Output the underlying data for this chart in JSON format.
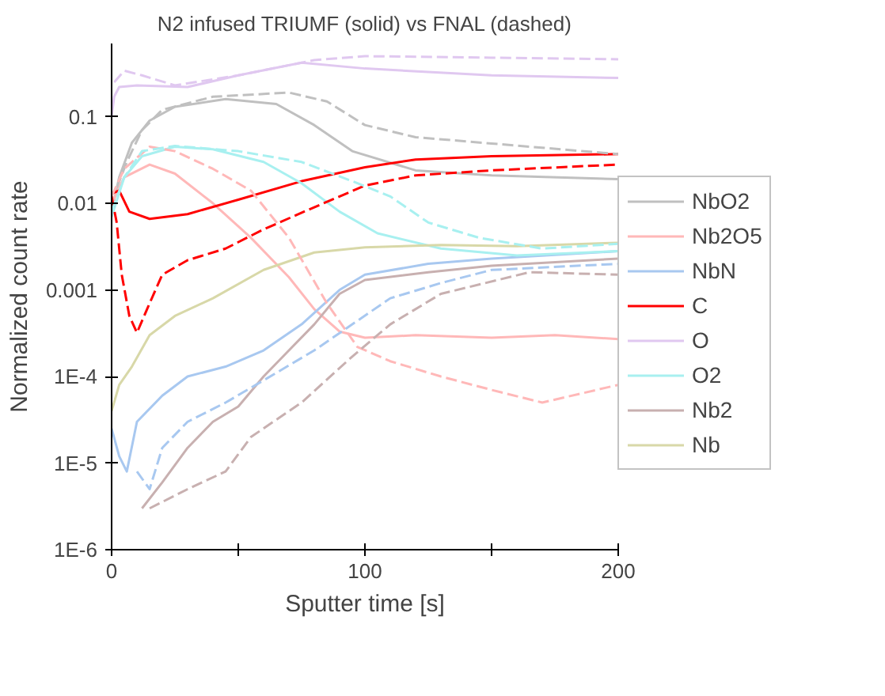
{
  "chart_data": {
    "type": "line",
    "title": "N2 infused TRIUMF (solid) vs FNAL (dashed)",
    "xlabel": "Sputter time [s]",
    "ylabel": "Normalized count rate",
    "log": "y",
    "grid": false,
    "legend": "right",
    "marker": "none",
    "xlim": [
      0,
      200
    ],
    "xticks": [
      0,
      {
        "value": 50,
        "label": null
      },
      100,
      {
        "value": 150,
        "label": null
      },
      200
    ],
    "ylim": [
      1e-06,
      0.7
    ],
    "yticks": [
      {
        "value": 1e-06,
        "label": "1E-6"
      },
      {
        "value": 1e-05,
        "label": "1E-5"
      },
      {
        "value": 0.0001,
        "label": "1E-4"
      },
      0.001,
      0.01,
      0.1
    ],
    "series": [
      {
        "name": "NbO2",
        "color": "#c0c0c0",
        "line_style": "solid",
        "x": [
          0,
          3,
          8,
          15,
          25,
          45,
          65,
          80,
          95,
          120,
          150,
          200
        ],
        "values": [
          0.008,
          0.02,
          0.05,
          0.09,
          0.13,
          0.16,
          0.14,
          0.08,
          0.04,
          0.024,
          0.021,
          0.019
        ]
      },
      {
        "name": "Nb2O5",
        "color": "#ffb8b8",
        "line_style": "solid",
        "x": [
          0,
          5,
          15,
          25,
          40,
          55,
          70,
          80,
          90,
          100,
          120,
          150,
          175,
          200
        ],
        "values": [
          0.01,
          0.02,
          0.028,
          0.022,
          0.01,
          0.004,
          0.0014,
          0.0006,
          0.00033,
          0.00028,
          0.0003,
          0.00028,
          0.0003,
          0.00027
        ]
      },
      {
        "name": "NbN",
        "color": "#a8c8f0",
        "line_style": "solid",
        "x": [
          0,
          3,
          6,
          10,
          20,
          30,
          45,
          60,
          75,
          90,
          100,
          125,
          150,
          200
        ],
        "values": [
          2.5e-05,
          1.2e-05,
          8e-06,
          3e-05,
          6e-05,
          0.0001,
          0.00013,
          0.0002,
          0.0004,
          0.001,
          0.0015,
          0.002,
          0.0023,
          0.0028
        ]
      },
      {
        "name": "C",
        "color": "#ff0000",
        "line_style": "solid",
        "x": [
          0,
          3,
          7,
          15,
          30,
          50,
          75,
          100,
          120,
          150,
          200
        ],
        "values": [
          0.013,
          0.014,
          0.008,
          0.0066,
          0.0075,
          0.011,
          0.018,
          0.026,
          0.032,
          0.035,
          0.037
        ]
      },
      {
        "name": "O",
        "color": "#e0c8f0",
        "line_style": "solid",
        "x": [
          0,
          1,
          3,
          10,
          30,
          50,
          75,
          100,
          150,
          200
        ],
        "values": [
          0.1,
          0.17,
          0.22,
          0.23,
          0.22,
          0.3,
          0.42,
          0.36,
          0.3,
          0.28
        ]
      },
      {
        "name": "O2",
        "color": "#a8f0f0",
        "line_style": "solid",
        "x": [
          0,
          5,
          12,
          25,
          40,
          60,
          75,
          90,
          105,
          130,
          160,
          200
        ],
        "values": [
          0.007,
          0.02,
          0.035,
          0.045,
          0.042,
          0.03,
          0.017,
          0.008,
          0.0045,
          0.003,
          0.0025,
          0.0028
        ]
      },
      {
        "name": "Nb2",
        "color": "#c8b0b0",
        "line_style": "solid",
        "x": [
          12,
          20,
          30,
          40,
          50,
          60,
          70,
          80,
          90,
          100,
          125,
          150,
          200
        ],
        "values": [
          3e-06,
          6e-06,
          1.5e-05,
          3e-05,
          4.5e-05,
          0.0001,
          0.0002,
          0.0004,
          0.0009,
          0.0013,
          0.0016,
          0.0019,
          0.0023
        ]
      },
      {
        "name": "Nb",
        "color": "#d8d8a8",
        "line_style": "solid",
        "x": [
          0,
          3,
          8,
          15,
          25,
          40,
          60,
          80,
          100,
          130,
          160,
          200
        ],
        "values": [
          4e-05,
          8e-05,
          0.00013,
          0.0003,
          0.0005,
          0.0008,
          0.0017,
          0.0027,
          0.0031,
          0.0033,
          0.0032,
          0.0035
        ]
      },
      {
        "color": "#c0c0c0",
        "line_style": "dashed",
        "x": [
          2,
          6,
          12,
          20,
          40,
          70,
          85,
          100,
          120,
          150,
          200
        ],
        "values": [
          0.015,
          0.03,
          0.07,
          0.12,
          0.17,
          0.19,
          0.15,
          0.08,
          0.058,
          0.049,
          0.037
        ]
      },
      {
        "color": "#ffb8b8",
        "line_style": "dashed",
        "x": [
          0,
          5,
          15,
          25,
          40,
          55,
          70,
          85,
          97,
          110,
          130,
          150,
          170,
          200
        ],
        "values": [
          0.012,
          0.025,
          0.045,
          0.04,
          0.025,
          0.014,
          0.004,
          0.0007,
          0.00022,
          0.00015,
          0.0001,
          7e-05,
          5e-05,
          8e-05
        ]
      },
      {
        "color": "#a8c8f0",
        "line_style": "dashed",
        "x": [
          10,
          15,
          20,
          30,
          45,
          65,
          80,
          95,
          110,
          130,
          150,
          200
        ],
        "values": [
          8e-06,
          5e-06,
          1.5e-05,
          3e-05,
          5e-05,
          0.00011,
          0.0002,
          0.0004,
          0.0008,
          0.0012,
          0.0017,
          0.002
        ]
      },
      {
        "color": "#ff0000",
        "line_style": "dashed",
        "x": [
          0,
          2,
          4,
          7,
          10,
          14,
          20,
          30,
          45,
          60,
          80,
          100,
          120,
          150,
          200
        ],
        "values": [
          0.012,
          0.006,
          0.0015,
          0.0005,
          0.00032,
          0.0006,
          0.0015,
          0.0022,
          0.003,
          0.005,
          0.009,
          0.016,
          0.021,
          0.024,
          0.028
        ]
      },
      {
        "color": "#e0c8f0",
        "line_style": "dashed",
        "x": [
          1,
          5,
          12,
          25,
          50,
          80,
          100,
          150,
          200
        ],
        "values": [
          0.25,
          0.34,
          0.3,
          0.23,
          0.3,
          0.45,
          0.5,
          0.48,
          0.46
        ]
      },
      {
        "color": "#a8f0f0",
        "line_style": "dashed",
        "x": [
          0,
          5,
          12,
          25,
          50,
          75,
          95,
          110,
          125,
          145,
          170,
          200
        ],
        "values": [
          0.008,
          0.02,
          0.04,
          0.046,
          0.04,
          0.03,
          0.018,
          0.012,
          0.006,
          0.004,
          0.003,
          0.0034
        ]
      },
      {
        "color": "#c8b0b0",
        "line_style": "dashed",
        "x": [
          15,
          30,
          45,
          55,
          75,
          95,
          110,
          130,
          165,
          200
        ],
        "values": [
          3e-06,
          5e-06,
          8e-06,
          2e-05,
          5e-05,
          0.00017,
          0.0004,
          0.0009,
          0.0016,
          0.0015
        ]
      }
    ]
  }
}
